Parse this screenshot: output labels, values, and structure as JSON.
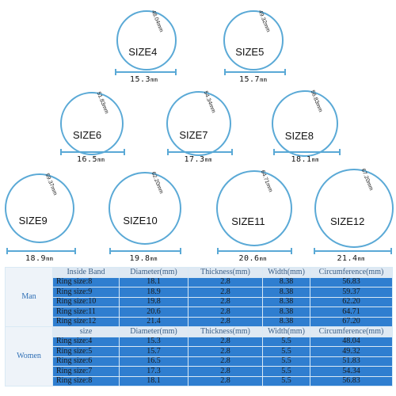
{
  "rings": [
    {
      "size": "SIZE4",
      "circumference": "48.04mm",
      "diameter": "15.3",
      "unit": "mm"
    },
    {
      "size": "SIZE5",
      "circumference": "49.32mm",
      "diameter": "15.7",
      "unit": "mm"
    },
    {
      "size": "SIZE6",
      "circumference": "51.83mm",
      "diameter": "16.5",
      "unit": "mm"
    },
    {
      "size": "SIZE7",
      "circumference": "54.34mm",
      "diameter": "17.3",
      "unit": "mm"
    },
    {
      "size": "SIZE8",
      "circumference": "56.83mm",
      "diameter": "18.1",
      "unit": "mm"
    },
    {
      "size": "SIZE9",
      "circumference": "59.37mm",
      "diameter": "18.9",
      "unit": "mm"
    },
    {
      "size": "SIZE10",
      "circumference": "62.20mm",
      "diameter": "19.8",
      "unit": "mm"
    },
    {
      "size": "SIZE11",
      "circumference": "64.71mm",
      "diameter": "20.6",
      "unit": "mm"
    },
    {
      "size": "SIZE12",
      "circumference": "67.20mm",
      "diameter": "21.4",
      "unit": "mm"
    }
  ],
  "table": {
    "men": {
      "group_label": "Man",
      "headers": [
        "Inside Band",
        "Diameter(mm)",
        "Thickness(mm)",
        "Width(mm)",
        "Circumference(mm)"
      ],
      "rows": [
        [
          "Ring size:8",
          "18.1",
          "2.8",
          "8.38",
          "56.83"
        ],
        [
          "Ring size:9",
          "18.9",
          "2.8",
          "8.38",
          "59.37"
        ],
        [
          "Ring size:10",
          "19.8",
          "2.8",
          "8.38",
          "62.20"
        ],
        [
          "Ring size:11",
          "20.6",
          "2.8",
          "8.38",
          "64.71"
        ],
        [
          "Ring size:12",
          "21.4",
          "2.8",
          "8.38",
          "67.20"
        ]
      ]
    },
    "women": {
      "group_label": "Women",
      "headers": [
        "size",
        "Diameter(mm)",
        "Thickness(mm)",
        "Width(mm)",
        "Circumference(mm)"
      ],
      "rows": [
        [
          "Ring size:4",
          "15.3",
          "2.8",
          "5.5",
          "48.04"
        ],
        [
          "Ring size:5",
          "15.7",
          "2.8",
          "5.5",
          "49.32"
        ],
        [
          "Ring size:6",
          "16.5",
          "2.8",
          "5.5",
          "51.83"
        ],
        [
          "Ring size:7",
          "17.3",
          "2.8",
          "5.5",
          "54.34"
        ],
        [
          "Ring size:8",
          "18.1",
          "2.8",
          "5.5",
          "56.83"
        ]
      ]
    }
  },
  "colors": {
    "ring_stroke": "#5aa9d6",
    "table_cell": "#2f7ed0",
    "table_header": "#dfe9f3"
  }
}
